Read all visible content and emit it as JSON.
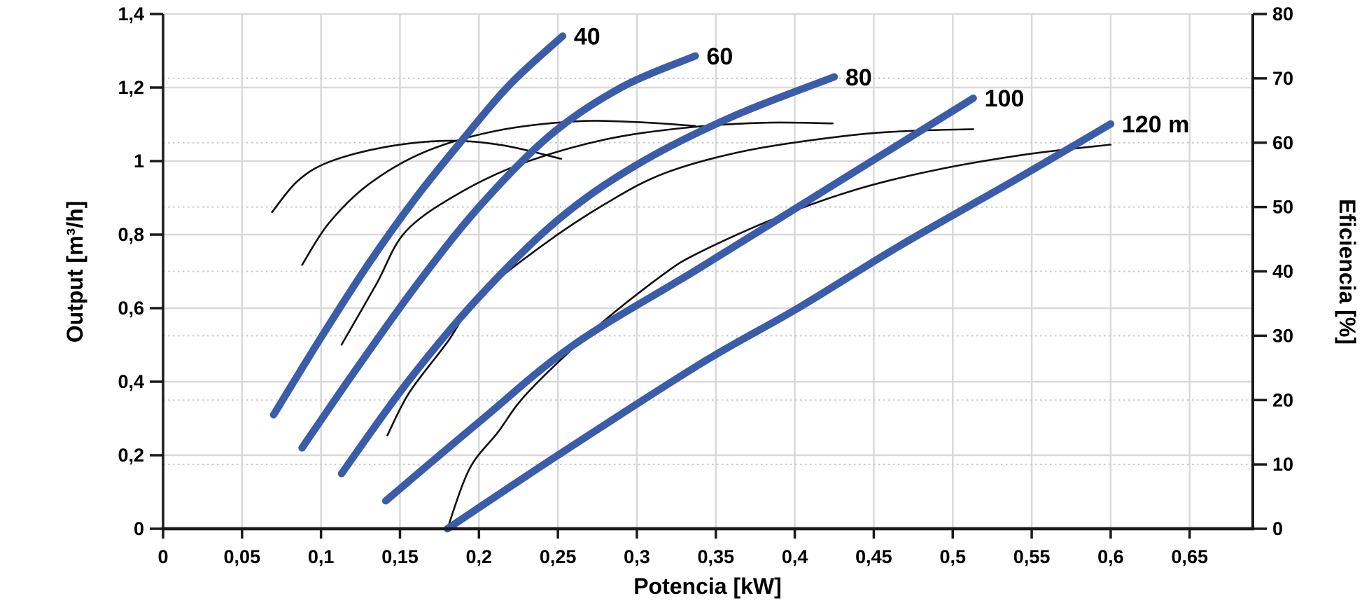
{
  "colors": {
    "head_curve_blue": "#3a5ca9",
    "efficiency_curve_black": "#111111",
    "grid_solid": "#d9d9d9",
    "grid_dotted": "#c9c9c9",
    "axis": "#1a1a1a",
    "background": "#ffffff",
    "label_text": "#000000"
  },
  "chart_data": {
    "type": "line",
    "title": "",
    "xlabel": "Potencia [kW]",
    "ylabel_left": "Output [m³/h]",
    "ylabel_right": "Eficiencia [%]",
    "x_range": [
      0,
      0.69
    ],
    "y_left_range": [
      0,
      1.4
    ],
    "y_right_range": [
      0,
      80
    ],
    "grid": true,
    "legend_position": "none",
    "x_ticks": {
      "values": [
        0,
        0.05,
        0.1,
        0.15,
        0.2,
        0.25,
        0.3,
        0.35,
        0.4,
        0.45,
        0.5,
        0.55,
        0.6,
        0.65
      ],
      "labels": [
        "0",
        "0,05",
        "0,1",
        "0,15",
        "0,2",
        "0,25",
        "0,3",
        "0,35",
        "0,4",
        "0,45",
        "0,5",
        "0,55",
        "0,6",
        "0,65"
      ]
    },
    "y_left_ticks": {
      "values": [
        0,
        0.2,
        0.4,
        0.6,
        0.8,
        1,
        1.2,
        1.4
      ],
      "labels": [
        "0",
        "0,2",
        "0,4",
        "0,6",
        "0,8",
        "1",
        "1,2",
        "1,4"
      ]
    },
    "y_right_ticks": {
      "values": [
        0,
        10,
        20,
        30,
        40,
        50,
        60,
        70,
        80
      ],
      "labels": [
        "0",
        "10",
        "20",
        "30",
        "40",
        "50",
        "60",
        "70",
        "80"
      ]
    },
    "solid_hgrid_left_values": [
      0.2,
      0.4,
      0.6,
      0.8,
      1.0,
      1.2,
      1.4
    ],
    "dotted_hgrid_right_values": [
      10,
      20,
      30,
      40,
      50,
      60,
      70
    ],
    "head_curves": [
      {
        "label": "40",
        "axis": "left",
        "points": [
          [
            0.07,
            0.31
          ],
          [
            0.1,
            0.52
          ],
          [
            0.13,
            0.72
          ],
          [
            0.16,
            0.9
          ],
          [
            0.19,
            1.06
          ],
          [
            0.22,
            1.21
          ],
          [
            0.253,
            1.34
          ]
        ]
      },
      {
        "label": "60",
        "axis": "left",
        "points": [
          [
            0.088,
            0.22
          ],
          [
            0.12,
            0.42
          ],
          [
            0.16,
            0.66
          ],
          [
            0.2,
            0.875
          ],
          [
            0.245,
            1.07
          ],
          [
            0.29,
            1.2
          ],
          [
            0.337,
            1.286
          ]
        ]
      },
      {
        "label": "80",
        "axis": "left",
        "points": [
          [
            0.113,
            0.15
          ],
          [
            0.155,
            0.4
          ],
          [
            0.2,
            0.63
          ],
          [
            0.25,
            0.84
          ],
          [
            0.3,
            0.99
          ],
          [
            0.36,
            1.12
          ],
          [
            0.425,
            1.229
          ]
        ]
      },
      {
        "label": "100",
        "axis": "left",
        "points": [
          [
            0.141,
            0.076
          ],
          [
            0.2,
            0.29
          ],
          [
            0.26,
            0.5
          ],
          [
            0.34,
            0.71
          ],
          [
            0.43,
            0.95
          ],
          [
            0.513,
            1.171
          ]
        ]
      },
      {
        "label": "120 m",
        "axis": "left",
        "points": [
          [
            0.18,
            0.0
          ],
          [
            0.25,
            0.2
          ],
          [
            0.34,
            0.448
          ],
          [
            0.402,
            0.6
          ],
          [
            0.467,
            0.771
          ],
          [
            0.54,
            0.95
          ],
          [
            0.6,
            1.101
          ]
        ]
      }
    ],
    "efficiency_curves": [
      {
        "head": "40",
        "axis": "right",
        "points": [
          [
            0.069,
            49.2
          ],
          [
            0.085,
            54.0
          ],
          [
            0.105,
            57.0
          ],
          [
            0.14,
            59.3
          ],
          [
            0.18,
            60.3
          ],
          [
            0.215,
            59.6
          ],
          [
            0.252,
            57.5
          ]
        ]
      },
      {
        "head": "60",
        "axis": "right",
        "points": [
          [
            0.088,
            41.0
          ],
          [
            0.105,
            47.5
          ],
          [
            0.13,
            53.5
          ],
          [
            0.165,
            58.5
          ],
          [
            0.21,
            61.8
          ],
          [
            0.26,
            63.3
          ],
          [
            0.3,
            63.2
          ],
          [
            0.337,
            62.6
          ]
        ]
      },
      {
        "head": "80",
        "axis": "right",
        "points": [
          [
            0.113,
            28.6
          ],
          [
            0.135,
            38.0
          ],
          [
            0.154,
            46.3
          ],
          [
            0.19,
            52.5
          ],
          [
            0.23,
            57.0
          ],
          [
            0.28,
            60.5
          ],
          [
            0.33,
            62.3
          ],
          [
            0.38,
            63.1
          ],
          [
            0.424,
            63.0
          ]
        ]
      },
      {
        "head": "100",
        "axis": "right",
        "points": [
          [
            0.142,
            14.5
          ],
          [
            0.156,
            21.2
          ],
          [
            0.18,
            29.0
          ],
          [
            0.2,
            36.1
          ],
          [
            0.24,
            44.0
          ],
          [
            0.28,
            50.5
          ],
          [
            0.318,
            55.3
          ],
          [
            0.37,
            58.8
          ],
          [
            0.43,
            61.0
          ],
          [
            0.47,
            61.8
          ],
          [
            0.513,
            62.1
          ]
        ]
      },
      {
        "head": "120",
        "axis": "right",
        "points": [
          [
            0.18,
            0.0
          ],
          [
            0.194,
            9.3
          ],
          [
            0.212,
            15.0
          ],
          [
            0.231,
            21.2
          ],
          [
            0.273,
            31.0
          ],
          [
            0.316,
            39.4
          ],
          [
            0.34,
            43.0
          ],
          [
            0.39,
            48.5
          ],
          [
            0.44,
            52.8
          ],
          [
            0.49,
            55.8
          ],
          [
            0.547,
            58.2
          ],
          [
            0.6,
            59.7
          ]
        ]
      }
    ]
  }
}
